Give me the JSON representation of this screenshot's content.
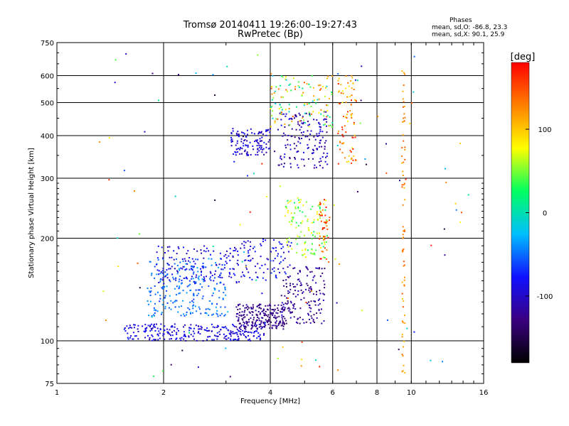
{
  "header": {
    "title_line1": "Tromsø 20140411 19:26:00–19:27:43",
    "title_line2": "RwPretec (Bp)"
  },
  "stats": {
    "heading": "Phases",
    "line_o": "mean, sd,O: -86.8, 23.3",
    "line_x": "mean, sd,X:  90.1, 25.9"
  },
  "chart_data": {
    "type": "scatter",
    "xlabel": "Frequency [MHz]",
    "ylabel": "Stationary phase Virtual Height [km]",
    "x_scale": "log",
    "y_scale": "log",
    "xlim": [
      1,
      16
    ],
    "ylim": [
      75,
      750
    ],
    "x_ticks": [
      1,
      2,
      4,
      6,
      8,
      10,
      16
    ],
    "x_tick_labels": [
      "1",
      "2",
      "4",
      "6",
      "8",
      "10",
      "16"
    ],
    "y_ticks": [
      75,
      100,
      200,
      300,
      400,
      500,
      600,
      750
    ],
    "y_tick_labels": [
      "75",
      "100",
      "200",
      "300",
      "400",
      "500",
      "600",
      "750"
    ],
    "grid": true,
    "colorbar": {
      "label": "[deg]",
      "min": -180,
      "max": 180,
      "ticks": [
        -100,
        0,
        100
      ],
      "tick_labels": [
        "-100",
        "0",
        "100"
      ],
      "colormap": [
        "#000000",
        "#3a0080",
        "#1010ff",
        "#00bfff",
        "#00ff60",
        "#ffff00",
        "#ff8000",
        "#ff0000"
      ]
    },
    "clusters": [
      {
        "name": "o-low-band",
        "f": [
          1.55,
          3.9
        ],
        "h": [
          100,
          112
        ],
        "phase": [
          -110,
          -70
        ],
        "count": 260
      },
      {
        "name": "o-low-band-2",
        "f": [
          3.2,
          4.4
        ],
        "h": [
          108,
          128
        ],
        "phase": [
          -140,
          -110
        ],
        "count": 220
      },
      {
        "name": "o-mid-cyan",
        "f": [
          1.8,
          3.0
        ],
        "h": [
          118,
          175
        ],
        "phase": [
          -70,
          -30
        ],
        "count": 240
      },
      {
        "name": "o-mid-blue",
        "f": [
          1.9,
          3.3
        ],
        "h": [
          145,
          190
        ],
        "phase": [
          -110,
          -75
        ],
        "count": 140
      },
      {
        "name": "o-trace",
        "f": [
          3.3,
          4.6
        ],
        "h": [
          150,
          200
        ],
        "phase": [
          -110,
          -60
        ],
        "count": 90
      },
      {
        "name": "x-trace-low",
        "f": [
          4.3,
          5.7
        ],
        "h": [
          112,
          165
        ],
        "phase": [
          -140,
          -100
        ],
        "count": 160
      },
      {
        "name": "x-trace-mid",
        "f": [
          4.4,
          5.8
        ],
        "h": [
          175,
          260
        ],
        "phase": [
          20,
          90
        ],
        "count": 120
      },
      {
        "name": "x-trace-vertical",
        "f": [
          5.5,
          5.9
        ],
        "h": [
          170,
          260
        ],
        "phase": [
          120,
          180
        ],
        "count": 40
      },
      {
        "name": "f2-cluster-1",
        "f": [
          3.1,
          4.0
        ],
        "h": [
          350,
          420
        ],
        "phase": [
          -120,
          -70
        ],
        "count": 120
      },
      {
        "name": "f2-cluster-2",
        "f": [
          4.2,
          5.8
        ],
        "h": [
          320,
          470
        ],
        "phase": [
          -130,
          -80
        ],
        "count": 160
      },
      {
        "name": "f2-cluster-3",
        "f": [
          4.0,
          6.0
        ],
        "h": [
          420,
          600
        ],
        "phase": [
          -30,
          150
        ],
        "count": 120
      },
      {
        "name": "high-freq-columns",
        "f": [
          6.2,
          7.0
        ],
        "h": [
          330,
          620
        ],
        "phase": [
          80,
          170
        ],
        "count": 80
      },
      {
        "name": "col-9.5",
        "f": [
          9.4,
          9.6
        ],
        "h": [
          80,
          620
        ],
        "phase": [
          100,
          150
        ],
        "count": 70
      },
      {
        "name": "scatter-misc",
        "f": [
          1.3,
          15
        ],
        "h": [
          78,
          700
        ],
        "phase": [
          -160,
          170
        ],
        "count": 120
      }
    ]
  }
}
